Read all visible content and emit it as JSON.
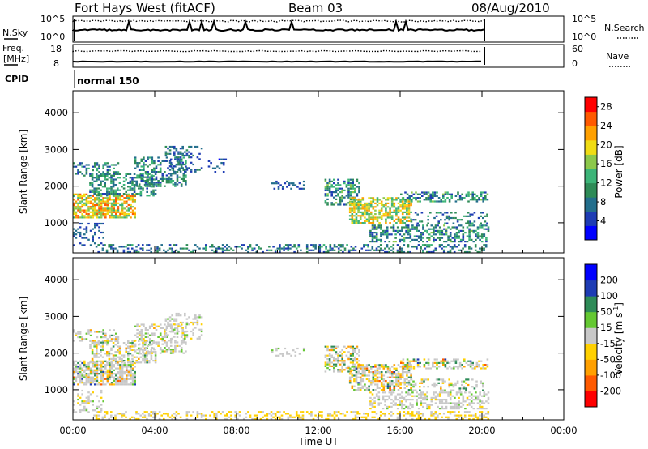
{
  "header": {
    "station": "Fort Hays West (fitACF)",
    "beam": "Beam 03",
    "date": "08/Aug/2010"
  },
  "panels": {
    "nsky_label": "N.Sky",
    "nsky_ticks": [
      "10^5",
      "10^0"
    ],
    "nsearch_label": "N.Search",
    "nsearch_ticks": [
      "10^5",
      "10^0"
    ],
    "freq_label_1": "Freq.",
    "freq_label_2": "[MHz]",
    "freq_ticks": [
      "18",
      "8"
    ],
    "nave_label": "Nave",
    "nave_ticks": [
      "60",
      "0"
    ],
    "cpid_label": "CPID",
    "cpid_value": "normal 150"
  },
  "colors": {
    "line": "#000000",
    "background": "#ffffff",
    "groundscatter": "#c8c8c8"
  },
  "chart_data": [
    {
      "type": "heatmap",
      "name_key": "power",
      "ylabel": "Slant Range [km]",
      "xlabel": "",
      "x_ticks": [
        "00:00",
        "04:00",
        "08:00",
        "12:00",
        "16:00",
        "20:00",
        "00:00"
      ],
      "x_tick_hours": [
        0,
        4,
        8,
        12,
        16,
        20,
        24
      ],
      "xlim_hours": [
        0,
        24
      ],
      "y_ticks": [
        1000,
        2000,
        3000,
        4000
      ],
      "ylim": [
        180,
        4600
      ],
      "colorbar": {
        "label": "Power [dB]",
        "tick_labels": [
          "28",
          "24",
          "20",
          "16",
          "12",
          "8",
          "4"
        ],
        "tick_values": [
          28,
          24,
          20,
          16,
          12,
          8,
          4
        ],
        "range": [
          0,
          30
        ],
        "colors": [
          "#0000ff",
          "#1e3cb4",
          "#236e8c",
          "#2e8b57",
          "#3cb478",
          "#8cc84b",
          "#f0dc14",
          "#ffa000",
          "#ff5a00",
          "#ff0000"
        ]
      },
      "regions": [
        {
          "t": [
            0.0,
            3.0
          ],
          "r": [
            1150,
            1800
          ],
          "value": 20,
          "spread": 7,
          "density": 0.75
        },
        {
          "t": [
            0.8,
            4.0
          ],
          "r": [
            1750,
            2350
          ],
          "value": 10,
          "spread": 5,
          "density": 0.45
        },
        {
          "t": [
            0.0,
            2.2
          ],
          "r": [
            2300,
            2650
          ],
          "value": 9,
          "spread": 4,
          "density": 0.35
        },
        {
          "t": [
            3.0,
            5.5
          ],
          "r": [
            2000,
            2800
          ],
          "value": 9,
          "spread": 5,
          "density": 0.4
        },
        {
          "t": [
            4.5,
            6.3
          ],
          "r": [
            2400,
            3100
          ],
          "value": 7,
          "spread": 4,
          "density": 0.3
        },
        {
          "t": [
            0.0,
            1.5
          ],
          "r": [
            400,
            1000
          ],
          "value": 6,
          "spread": 3,
          "density": 0.25
        },
        {
          "t": [
            6.5,
            7.5
          ],
          "r": [
            2400,
            2800
          ],
          "value": 5,
          "spread": 3,
          "density": 0.2
        },
        {
          "t": [
            9.7,
            11.3
          ],
          "r": [
            1950,
            2150
          ],
          "value": 6,
          "spread": 3,
          "density": 0.35
        },
        {
          "t": [
            12.3,
            14.0
          ],
          "r": [
            1500,
            2200
          ],
          "value": 10,
          "spread": 6,
          "density": 0.5
        },
        {
          "t": [
            13.5,
            16.5
          ],
          "r": [
            1000,
            1700
          ],
          "value": 18,
          "spread": 6,
          "density": 0.6
        },
        {
          "t": [
            16.0,
            20.3
          ],
          "r": [
            1600,
            1850
          ],
          "value": 10,
          "spread": 6,
          "density": 0.5
        },
        {
          "t": [
            14.5,
            20.3
          ],
          "r": [
            500,
            950
          ],
          "value": 10,
          "spread": 6,
          "density": 0.45
        },
        {
          "t": [
            16.5,
            20.3
          ],
          "r": [
            1000,
            1300
          ],
          "value": 8,
          "spread": 5,
          "density": 0.3
        },
        {
          "t": [
            1.0,
            20.3
          ],
          "r": [
            180,
            420
          ],
          "value": 8,
          "spread": 5,
          "density": 0.35
        }
      ]
    },
    {
      "type": "heatmap",
      "name_key": "velocity",
      "ylabel": "Slant Range [km]",
      "xlabel": "Time UT",
      "x_ticks": [
        "00:00",
        "04:00",
        "08:00",
        "12:00",
        "16:00",
        "20:00",
        "00:00"
      ],
      "x_tick_hours": [
        0,
        4,
        8,
        12,
        16,
        20,
        24
      ],
      "xlim_hours": [
        0,
        24
      ],
      "y_ticks": [
        1000,
        2000,
        3000,
        4000
      ],
      "ylim": [
        180,
        4600
      ],
      "colorbar": {
        "label": "Velocity [m s^-1]",
        "tick_labels": [
          "200",
          "100",
          "50",
          "15",
          "-15",
          "-50",
          "-100",
          "-200"
        ],
        "tick_values": [
          200,
          100,
          50,
          15,
          -15,
          -50,
          -100,
          -200
        ],
        "range": [
          -250,
          250
        ],
        "colors": [
          "#ff0000",
          "#ff5a00",
          "#ffa000",
          "#ffd000",
          "#c8c8c8",
          "#64c832",
          "#2e8b57",
          "#1e3cb4",
          "#0000ff"
        ]
      },
      "regions": [
        {
          "t": [
            0.0,
            3.0
          ],
          "r": [
            1150,
            1800
          ],
          "value": 0,
          "spread": 160,
          "density": 0.75,
          "ground": 0.5
        },
        {
          "t": [
            0.8,
            4.0
          ],
          "r": [
            1750,
            2350
          ],
          "value": 0,
          "spread": 120,
          "density": 0.45,
          "ground": 0.6
        },
        {
          "t": [
            0.0,
            2.2
          ],
          "r": [
            2300,
            2650
          ],
          "value": 0,
          "spread": 120,
          "density": 0.35,
          "ground": 0.5
        },
        {
          "t": [
            3.0,
            5.5
          ],
          "r": [
            2000,
            2800
          ],
          "value": 0,
          "spread": 90,
          "density": 0.4,
          "ground": 0.7
        },
        {
          "t": [
            4.5,
            6.3
          ],
          "r": [
            2400,
            3100
          ],
          "value": 0,
          "spread": 80,
          "density": 0.3,
          "ground": 0.6
        },
        {
          "t": [
            0.0,
            1.5
          ],
          "r": [
            400,
            1000
          ],
          "value": 0,
          "spread": 60,
          "density": 0.25,
          "ground": 0.7
        },
        {
          "t": [
            9.7,
            11.3
          ],
          "r": [
            1950,
            2150
          ],
          "value": 10,
          "spread": 40,
          "density": 0.35,
          "ground": 0.6
        },
        {
          "t": [
            12.3,
            14.0
          ],
          "r": [
            1500,
            2200
          ],
          "value": 0,
          "spread": 140,
          "density": 0.5,
          "ground": 0.4
        },
        {
          "t": [
            13.5,
            16.5
          ],
          "r": [
            1000,
            1700
          ],
          "value": 0,
          "spread": 160,
          "density": 0.6,
          "ground": 0.4
        },
        {
          "t": [
            16.0,
            20.3
          ],
          "r": [
            1600,
            1850
          ],
          "value": 0,
          "spread": 150,
          "density": 0.5,
          "ground": 0.4
        },
        {
          "t": [
            14.5,
            20.3
          ],
          "r": [
            500,
            950
          ],
          "value": 0,
          "spread": 80,
          "density": 0.45,
          "ground": 0.75
        },
        {
          "t": [
            16.5,
            20.3
          ],
          "r": [
            1000,
            1300
          ],
          "value": 0,
          "spread": 120,
          "density": 0.3,
          "ground": 0.5
        },
        {
          "t": [
            1.0,
            20.3
          ],
          "r": [
            180,
            420
          ],
          "value": -40,
          "spread": 20,
          "density": 0.35,
          "ground": 0.2
        }
      ]
    }
  ]
}
